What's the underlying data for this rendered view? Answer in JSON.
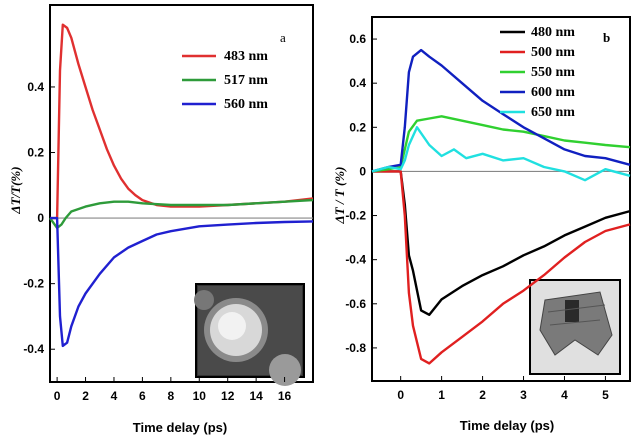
{
  "chart_data": [
    {
      "type": "line",
      "panel_label": "a",
      "xlabel": "Time delay (ps)",
      "ylabel": "ΔT/T(%)",
      "xlim": [
        -0.5,
        18
      ],
      "ylim": [
        -0.5,
        0.65
      ],
      "xticks": [
        0,
        2,
        4,
        6,
        8,
        10,
        12,
        14,
        16
      ],
      "yticks": [
        -0.4,
        -0.2,
        0,
        0.2,
        0.4
      ],
      "ytick_labels": [
        "-0.4",
        "-0.2",
        "0",
        "0.2",
        "0.4"
      ],
      "zero_line": true,
      "legend_position": "top-right",
      "inset": "TEM image of nanoparticle (bottom-right)",
      "series": [
        {
          "name": "483 nm",
          "color": "#e03030",
          "x": [
            -0.5,
            0,
            0.2,
            0.4,
            0.7,
            1,
            1.5,
            2,
            2.5,
            3,
            3.5,
            4,
            4.5,
            5,
            5.5,
            6,
            7,
            8,
            10,
            12,
            14,
            16,
            18
          ],
          "y": [
            0,
            0,
            0.45,
            0.59,
            0.58,
            0.55,
            0.47,
            0.4,
            0.33,
            0.27,
            0.21,
            0.16,
            0.12,
            0.09,
            0.07,
            0.055,
            0.04,
            0.035,
            0.035,
            0.04,
            0.045,
            0.05,
            0.06
          ]
        },
        {
          "name": "517 nm",
          "color": "#2e9b3a",
          "x": [
            -0.5,
            0,
            0.3,
            0.6,
            1,
            2,
            3,
            4,
            5,
            6,
            8,
            10,
            12,
            14,
            16,
            18
          ],
          "y": [
            0,
            -0.03,
            -0.02,
            0,
            0.02,
            0.035,
            0.045,
            0.05,
            0.05,
            0.045,
            0.04,
            0.04,
            0.04,
            0.045,
            0.05,
            0.055
          ]
        },
        {
          "name": "560 nm",
          "color": "#2020d0",
          "x": [
            -0.5,
            0,
            0.2,
            0.4,
            0.7,
            1,
            1.5,
            2,
            3,
            4,
            5,
            6,
            7,
            8,
            10,
            12,
            14,
            16,
            18
          ],
          "y": [
            0,
            0,
            -0.3,
            -0.39,
            -0.38,
            -0.33,
            -0.27,
            -0.23,
            -0.17,
            -0.12,
            -0.09,
            -0.07,
            -0.05,
            -0.04,
            -0.025,
            -0.02,
            -0.015,
            -0.012,
            -0.01
          ]
        }
      ]
    },
    {
      "type": "line",
      "panel_label": "b",
      "xlabel": "Time delay (ps)",
      "ylabel": "ΔT / T (%)",
      "xlim": [
        -0.7,
        5.6
      ],
      "ylim": [
        -0.95,
        0.7
      ],
      "xticks": [
        0,
        1,
        2,
        3,
        4,
        5
      ],
      "yticks": [
        -0.8,
        -0.6,
        -0.4,
        -0.2,
        0,
        0.2,
        0.4,
        0.6
      ],
      "ytick_labels": [
        "-0.8",
        "-0.6",
        "-0.4",
        "-0.2",
        "0",
        "0.2",
        "0.4",
        "0.6"
      ],
      "zero_line": true,
      "legend_position": "top-right",
      "inset": "TEM image of nanoparticle (bottom-right)",
      "series": [
        {
          "name": "480 nm",
          "color": "#000000",
          "x": [
            -0.7,
            -0.3,
            0,
            0.1,
            0.2,
            0.3,
            0.5,
            0.7,
            1,
            1.5,
            2,
            2.5,
            3,
            3.5,
            4,
            4.5,
            5,
            5.6
          ],
          "y": [
            0,
            0,
            0,
            -0.15,
            -0.38,
            -0.45,
            -0.63,
            -0.65,
            -0.58,
            -0.52,
            -0.47,
            -0.43,
            -0.38,
            -0.34,
            -0.29,
            -0.25,
            -0.21,
            -0.18
          ]
        },
        {
          "name": "500 nm",
          "color": "#e02020",
          "x": [
            -0.7,
            -0.3,
            0,
            0.1,
            0.2,
            0.3,
            0.5,
            0.7,
            1,
            1.5,
            2,
            2.5,
            3,
            3.5,
            4,
            4.5,
            5,
            5.6
          ],
          "y": [
            0,
            0,
            0,
            -0.2,
            -0.55,
            -0.7,
            -0.85,
            -0.87,
            -0.82,
            -0.75,
            -0.68,
            -0.6,
            -0.54,
            -0.47,
            -0.39,
            -0.32,
            -0.27,
            -0.24
          ]
        },
        {
          "name": "550 nm",
          "color": "#30d030",
          "x": [
            -0.7,
            -0.3,
            0,
            0.1,
            0.2,
            0.4,
            0.7,
            1,
            1.5,
            2,
            2.5,
            3,
            3.5,
            4,
            4.5,
            5,
            5.6
          ],
          "y": [
            0,
            0.01,
            0.02,
            0.1,
            0.18,
            0.23,
            0.24,
            0.25,
            0.23,
            0.21,
            0.19,
            0.18,
            0.16,
            0.14,
            0.13,
            0.12,
            0.11
          ]
        },
        {
          "name": "600 nm",
          "color": "#1020c0",
          "x": [
            -0.7,
            -0.3,
            0,
            0.1,
            0.2,
            0.3,
            0.5,
            0.7,
            1,
            1.5,
            2,
            2.5,
            3,
            3.5,
            4,
            4.5,
            5,
            5.6
          ],
          "y": [
            0,
            0.02,
            0.03,
            0.2,
            0.45,
            0.52,
            0.55,
            0.52,
            0.48,
            0.4,
            0.32,
            0.26,
            0.2,
            0.15,
            0.1,
            0.07,
            0.06,
            0.03
          ]
        },
        {
          "name": "650 nm",
          "color": "#20e0e0",
          "x": [
            -0.7,
            -0.3,
            0,
            0.1,
            0.2,
            0.4,
            0.7,
            1,
            1.3,
            1.6,
            2,
            2.5,
            3,
            3.5,
            4,
            4.5,
            5,
            5.6
          ],
          "y": [
            0,
            0.02,
            0.01,
            0.05,
            0.12,
            0.2,
            0.12,
            0.07,
            0.1,
            0.06,
            0.08,
            0.05,
            0.06,
            0.02,
            0.0,
            -0.04,
            0.01,
            -0.02
          ]
        }
      ]
    }
  ]
}
